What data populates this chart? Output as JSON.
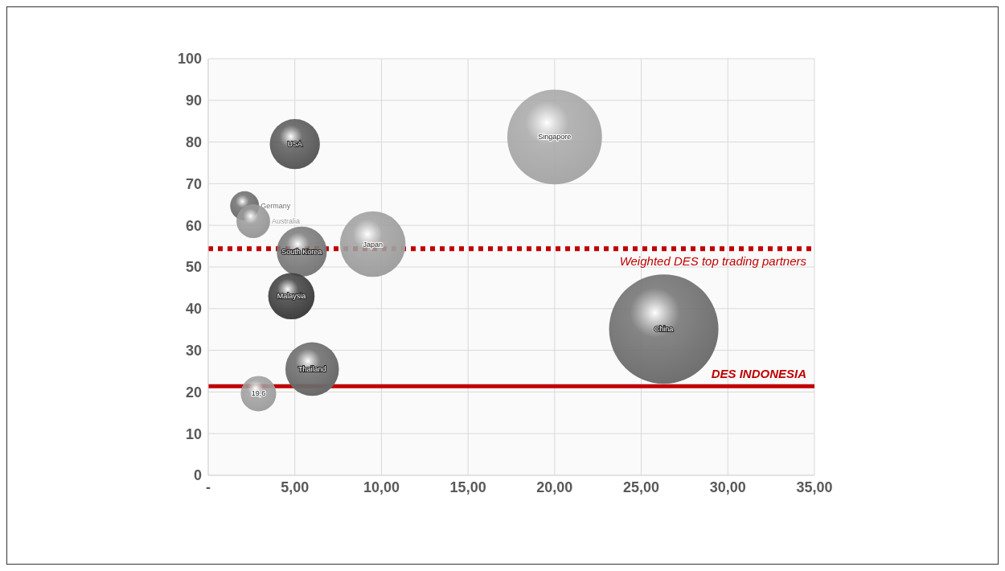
{
  "chart_data": {
    "type": "bubble",
    "xlim": [
      0,
      35
    ],
    "ylim": [
      0,
      100
    ],
    "xticks": [
      {
        "value": 0,
        "label": "-"
      },
      {
        "value": 5,
        "label": "5,00"
      },
      {
        "value": 10,
        "label": "10,00"
      },
      {
        "value": 15,
        "label": "15,00"
      },
      {
        "value": 20,
        "label": "20,00"
      },
      {
        "value": 25,
        "label": "25,00"
      },
      {
        "value": 30,
        "label": "30,00"
      },
      {
        "value": 35,
        "label": "35,00"
      }
    ],
    "yticks": [
      0,
      10,
      20,
      30,
      40,
      50,
      60,
      70,
      80,
      90,
      100
    ],
    "grid": true,
    "legend": false,
    "marker": "circle",
    "series": [
      {
        "name": "USA",
        "color": "#5a5a5a",
        "x": [
          5.0
        ],
        "values": [
          79.5
        ],
        "sizes": [
          0.21
        ]
      },
      {
        "name": "Singapore",
        "color": "#a8a8a8",
        "x": [
          20.0
        ],
        "values": [
          81.2
        ],
        "sizes": [
          0.75
        ]
      },
      {
        "name": "Germany",
        "color": "#6e6e6e",
        "x": [
          2.1
        ],
        "values": [
          64.7
        ],
        "sizes": [
          0.07
        ]
      },
      {
        "name": "Australia",
        "color": "#9a9a9a",
        "x": [
          2.6
        ],
        "values": [
          61.0
        ],
        "sizes": [
          0.095
        ]
      },
      {
        "name": "Japan",
        "color": "#a0a0a0",
        "x": [
          9.5
        ],
        "values": [
          55.5
        ],
        "sizes": [
          0.36
        ]
      },
      {
        "name": "South Korea",
        "color": "#7a7a7a",
        "x": [
          5.4
        ],
        "values": [
          53.7
        ],
        "sizes": [
          0.21
        ]
      },
      {
        "name": "Malaysia",
        "color": "#404040",
        "x": [
          4.8
        ],
        "values": [
          43.0
        ],
        "sizes": [
          0.18
        ]
      },
      {
        "name": "China",
        "color": "#707070",
        "x": [
          26.3
        ],
        "values": [
          35.1
        ],
        "sizes": [
          1
        ]
      },
      {
        "name": "Thailand",
        "color": "#6a6a6a",
        "x": [
          6.0
        ],
        "values": [
          25.5
        ],
        "sizes": [
          0.24
        ]
      },
      {
        "color": "#a0a0a0",
        "x": [
          2.9
        ],
        "values": [
          19.6
        ],
        "sizes": [
          0.105
        ],
        "value_labels": [
          "19,6"
        ]
      }
    ],
    "ref_lines": [
      {
        "axis": "y",
        "value": 54.4,
        "label": "Weighted DES top trading partners",
        "color": "#c00000",
        "line_style": "dotted"
      },
      {
        "axis": "y",
        "value": 21.4,
        "label": "DES INDONESIA",
        "color": "#c00000",
        "line_style": "solid"
      }
    ]
  }
}
